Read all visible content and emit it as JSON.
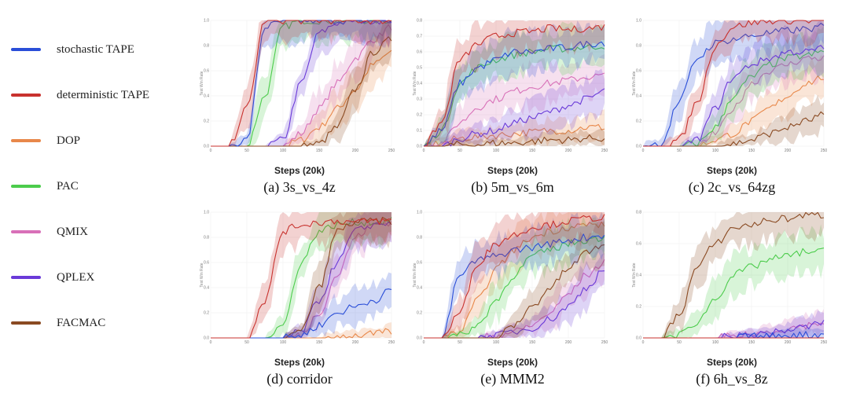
{
  "legend": [
    {
      "label": "stochastic TAPE",
      "color": "#2a4ed8"
    },
    {
      "label": "deterministic TAPE",
      "color": "#c8322e"
    },
    {
      "label": "DOP",
      "color": "#e8884a"
    },
    {
      "label": "PAC",
      "color": "#4ccc4c"
    },
    {
      "label": "QMIX",
      "color": "#d870b8"
    },
    {
      "label": "QPLEX",
      "color": "#6a3ad8"
    },
    {
      "label": "FACMAC",
      "color": "#8a4a22"
    }
  ],
  "chart_data": [
    {
      "type": "line",
      "caption": "(a) 3s_vs_4z",
      "xlabel": "Steps (20k)",
      "ylabel": "Test Win Rate",
      "xlim": [
        0,
        250
      ],
      "ylim": [
        0,
        1.0
      ],
      "xticks": [
        "0",
        "50",
        "100",
        "150",
        "200",
        "250"
      ],
      "yticks": [
        "0.0",
        "0.2",
        "0.4",
        "0.6",
        "0.8",
        "1.0"
      ],
      "x": [
        0,
        25,
        50,
        75,
        100,
        125,
        150,
        175,
        200,
        225,
        250
      ],
      "series": [
        {
          "name": "stochastic TAPE",
          "values": [
            0,
            0,
            0.05,
            0.95,
            0.99,
            1.0,
            1.0,
            1.0,
            1.0,
            1.0,
            1.0
          ]
        },
        {
          "name": "deterministic TAPE",
          "values": [
            0,
            0,
            0.3,
            1.0,
            1.0,
            1.0,
            1.0,
            1.0,
            1.0,
            1.0,
            1.0
          ]
        },
        {
          "name": "DOP",
          "values": [
            0,
            0,
            0,
            0,
            0,
            0.05,
            0.15,
            0.3,
            0.45,
            0.65,
            0.75
          ]
        },
        {
          "name": "PAC",
          "values": [
            0,
            0,
            0,
            0.4,
            0.95,
            1.0,
            1.0,
            1.0,
            1.0,
            1.0,
            1.0
          ]
        },
        {
          "name": "QMIX",
          "values": [
            0,
            0,
            0,
            0,
            0,
            0.1,
            0.3,
            0.5,
            0.7,
            0.85,
            0.95
          ]
        },
        {
          "name": "QPLEX",
          "values": [
            0,
            0,
            0,
            0,
            0.05,
            0.5,
            0.9,
            0.98,
            1.0,
            1.0,
            1.0
          ]
        },
        {
          "name": "FACMAC",
          "values": [
            0,
            0,
            0,
            0,
            0,
            0,
            0.02,
            0.15,
            0.45,
            0.75,
            0.85
          ]
        }
      ]
    },
    {
      "type": "line",
      "caption": "(b) 5m_vs_6m",
      "xlabel": "Steps (20k)",
      "ylabel": "Test Win Rate",
      "xlim": [
        0,
        250
      ],
      "ylim": [
        0,
        0.8
      ],
      "xticks": [
        "0",
        "50",
        "100",
        "150",
        "200",
        "250"
      ],
      "yticks": [
        "0.0",
        "0.1",
        "0.2",
        "0.3",
        "0.4",
        "0.5",
        "0.6",
        "0.7",
        "0.8"
      ],
      "x": [
        0,
        25,
        50,
        75,
        100,
        125,
        150,
        175,
        200,
        225,
        250
      ],
      "series": [
        {
          "name": "stochastic TAPE",
          "values": [
            0,
            0.1,
            0.4,
            0.5,
            0.55,
            0.6,
            0.6,
            0.62,
            0.63,
            0.65,
            0.66
          ]
        },
        {
          "name": "deterministic TAPE",
          "values": [
            0,
            0.15,
            0.55,
            0.65,
            0.7,
            0.72,
            0.73,
            0.75,
            0.74,
            0.75,
            0.76
          ]
        },
        {
          "name": "DOP",
          "values": [
            0,
            0.02,
            0.05,
            0.06,
            0.07,
            0.08,
            0.09,
            0.1,
            0.1,
            0.12,
            0.12
          ]
        },
        {
          "name": "PAC",
          "values": [
            0,
            0.1,
            0.4,
            0.5,
            0.55,
            0.58,
            0.6,
            0.62,
            0.62,
            0.63,
            0.64
          ]
        },
        {
          "name": "QMIX",
          "values": [
            0,
            0.02,
            0.15,
            0.25,
            0.3,
            0.35,
            0.38,
            0.4,
            0.42,
            0.44,
            0.45
          ]
        },
        {
          "name": "QPLEX",
          "values": [
            0,
            0,
            0.05,
            0.08,
            0.1,
            0.15,
            0.18,
            0.22,
            0.26,
            0.3,
            0.35
          ]
        },
        {
          "name": "FACMAC",
          "values": [
            0,
            0,
            0.01,
            0.01,
            0.02,
            0.02,
            0.03,
            0.04,
            0.04,
            0.05,
            0.05
          ]
        }
      ]
    },
    {
      "type": "line",
      "caption": "(c) 2c_vs_64zg",
      "xlabel": "Steps (20k)",
      "ylabel": "Test Win Rate",
      "xlim": [
        0,
        250
      ],
      "ylim": [
        0,
        1.0
      ],
      "xticks": [
        "0",
        "50",
        "100",
        "150",
        "200",
        "250"
      ],
      "yticks": [
        "0.0",
        "0.2",
        "0.4",
        "0.6",
        "0.8",
        "1.0"
      ],
      "x": [
        0,
        25,
        50,
        75,
        100,
        125,
        150,
        175,
        200,
        225,
        250
      ],
      "series": [
        {
          "name": "stochastic TAPE",
          "values": [
            0,
            0.02,
            0.35,
            0.7,
            0.82,
            0.85,
            0.88,
            0.9,
            0.92,
            0.93,
            0.95
          ]
        },
        {
          "name": "deterministic TAPE",
          "values": [
            0,
            0,
            0.05,
            0.35,
            0.8,
            0.95,
            0.98,
            1.0,
            1.0,
            1.0,
            1.0
          ]
        },
        {
          "name": "DOP",
          "values": [
            0,
            0,
            0,
            0,
            0.05,
            0.1,
            0.2,
            0.3,
            0.4,
            0.5,
            0.55
          ]
        },
        {
          "name": "PAC",
          "values": [
            0,
            0,
            0,
            0.02,
            0.15,
            0.4,
            0.55,
            0.65,
            0.7,
            0.72,
            0.75
          ]
        },
        {
          "name": "QMIX",
          "values": [
            0,
            0,
            0,
            0,
            0.1,
            0.3,
            0.5,
            0.6,
            0.65,
            0.7,
            0.7
          ]
        },
        {
          "name": "QPLEX",
          "values": [
            0,
            0,
            0,
            0.05,
            0.3,
            0.55,
            0.65,
            0.7,
            0.75,
            0.75,
            0.78
          ]
        },
        {
          "name": "FACMAC",
          "values": [
            0,
            0,
            0,
            0,
            0,
            0.02,
            0.05,
            0.1,
            0.15,
            0.2,
            0.25
          ]
        }
      ]
    },
    {
      "type": "line",
      "caption": "(d) corridor",
      "xlabel": "Steps (20k)",
      "ylabel": "Test Win Rate",
      "xlim": [
        0,
        250
      ],
      "ylim": [
        0,
        1.0
      ],
      "xticks": [
        "0",
        "50",
        "100",
        "150",
        "200",
        "250"
      ],
      "yticks": [
        "0.0",
        "0.2",
        "0.4",
        "0.6",
        "0.8",
        "1.0"
      ],
      "x": [
        0,
        25,
        50,
        75,
        100,
        125,
        150,
        175,
        200,
        225,
        250
      ],
      "series": [
        {
          "name": "stochastic TAPE",
          "values": [
            0,
            0,
            0,
            0,
            0,
            0.02,
            0.1,
            0.2,
            0.25,
            0.3,
            0.38
          ]
        },
        {
          "name": "deterministic TAPE",
          "values": [
            0,
            0,
            0,
            0.3,
            0.85,
            0.9,
            0.92,
            0.93,
            0.92,
            0.93,
            0.93
          ]
        },
        {
          "name": "DOP",
          "values": [
            0,
            0,
            0,
            0,
            0,
            0,
            0,
            0.01,
            0.02,
            0.03,
            0.05
          ]
        },
        {
          "name": "PAC",
          "values": [
            0,
            0,
            0,
            0,
            0.1,
            0.6,
            0.85,
            0.9,
            0.92,
            0.92,
            0.93
          ]
        },
        {
          "name": "QMIX",
          "values": [
            0,
            0,
            0,
            0,
            0,
            0.02,
            0.2,
            0.5,
            0.8,
            0.9,
            0.92
          ]
        },
        {
          "name": "QPLEX",
          "values": [
            0,
            0,
            0,
            0,
            0,
            0.05,
            0.3,
            0.6,
            0.85,
            0.9,
            0.92
          ]
        },
        {
          "name": "FACMAC",
          "values": [
            0,
            0,
            0,
            0,
            0,
            0.05,
            0.4,
            0.85,
            0.92,
            0.93,
            0.93
          ]
        }
      ]
    },
    {
      "type": "line",
      "caption": "(e) MMM2",
      "xlabel": "Steps (20k)",
      "ylabel": "Test Win Rate",
      "xlim": [
        0,
        250
      ],
      "ylim": [
        0,
        1.0
      ],
      "xticks": [
        "0",
        "50",
        "100",
        "150",
        "200",
        "250"
      ],
      "yticks": [
        "0.0",
        "0.2",
        "0.4",
        "0.6",
        "0.8",
        "1.0"
      ],
      "x": [
        0,
        25,
        50,
        75,
        100,
        125,
        150,
        175,
        200,
        225,
        250
      ],
      "series": [
        {
          "name": "stochastic TAPE",
          "values": [
            0,
            0,
            0.5,
            0.62,
            0.65,
            0.7,
            0.72,
            0.75,
            0.78,
            0.8,
            0.82
          ]
        },
        {
          "name": "deterministic TAPE",
          "values": [
            0,
            0,
            0.2,
            0.6,
            0.75,
            0.82,
            0.88,
            0.9,
            0.93,
            0.95,
            0.96
          ]
        },
        {
          "name": "DOP",
          "values": [
            0,
            0,
            0.05,
            0.3,
            0.55,
            0.7,
            0.8,
            0.85,
            0.88,
            0.9,
            0.9
          ]
        },
        {
          "name": "PAC",
          "values": [
            0,
            0,
            0.02,
            0.1,
            0.3,
            0.5,
            0.65,
            0.7,
            0.75,
            0.78,
            0.8
          ]
        },
        {
          "name": "QMIX",
          "values": [
            0,
            0,
            0,
            0,
            0.02,
            0.05,
            0.1,
            0.2,
            0.35,
            0.5,
            0.6
          ]
        },
        {
          "name": "QPLEX",
          "values": [
            0,
            0,
            0,
            0,
            0.02,
            0.05,
            0.08,
            0.15,
            0.25,
            0.4,
            0.55
          ]
        },
        {
          "name": "FACMAC",
          "values": [
            0,
            0,
            0,
            0,
            0,
            0.1,
            0.25,
            0.4,
            0.55,
            0.68,
            0.75
          ]
        }
      ]
    },
    {
      "type": "line",
      "caption": "(f) 6h_vs_8z",
      "xlabel": "Steps (20k)",
      "ylabel": "Test Win Rate",
      "xlim": [
        0,
        250
      ],
      "ylim": [
        0,
        0.8
      ],
      "xticks": [
        "0",
        "50",
        "100",
        "150",
        "200",
        "250"
      ],
      "yticks": [
        "0.0",
        "0.2",
        "0.4",
        "0.6",
        "0.8"
      ],
      "x": [
        0,
        25,
        50,
        75,
        100,
        125,
        150,
        175,
        200,
        225,
        250
      ],
      "series": [
        {
          "name": "stochastic TAPE",
          "values": [
            0,
            0,
            0,
            0,
            0,
            0,
            0.01,
            0.01,
            0.02,
            0.02,
            0.02
          ]
        },
        {
          "name": "deterministic TAPE",
          "values": [
            0,
            0,
            0,
            0,
            0,
            0,
            0,
            0,
            0,
            0,
            0
          ]
        },
        {
          "name": "DOP",
          "values": [
            0,
            0,
            0,
            0,
            0,
            0,
            0,
            0,
            0,
            0,
            0
          ]
        },
        {
          "name": "PAC",
          "values": [
            0,
            0,
            0.02,
            0.1,
            0.25,
            0.4,
            0.45,
            0.5,
            0.52,
            0.55,
            0.55
          ]
        },
        {
          "name": "QMIX",
          "values": [
            0,
            0,
            0,
            0,
            0,
            0.01,
            0.02,
            0.04,
            0.06,
            0.08,
            0.1
          ]
        },
        {
          "name": "QPLEX",
          "values": [
            0,
            0,
            0,
            0,
            0,
            0.01,
            0.02,
            0.03,
            0.05,
            0.07,
            0.1
          ]
        },
        {
          "name": "FACMAC",
          "values": [
            0,
            0,
            0.15,
            0.45,
            0.6,
            0.7,
            0.72,
            0.75,
            0.76,
            0.78,
            0.78
          ]
        }
      ]
    }
  ]
}
